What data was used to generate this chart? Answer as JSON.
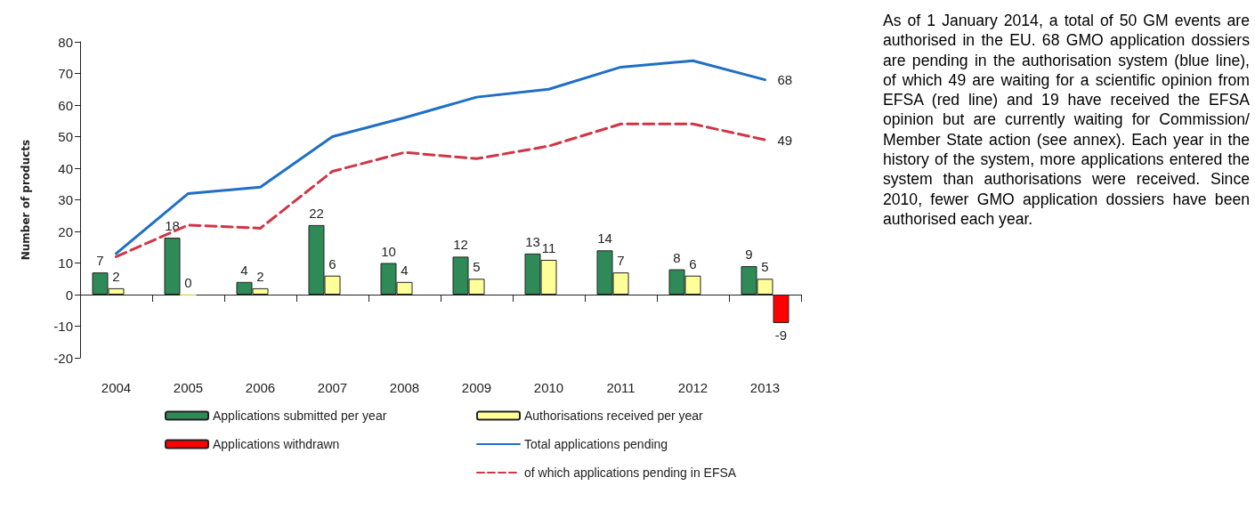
{
  "chart_data": {
    "type": "bar",
    "ylabel": "Number of products",
    "categories": [
      "2004",
      "2005",
      "2006",
      "2007",
      "2008",
      "2009",
      "2010",
      "2011",
      "2012",
      "2013"
    ],
    "series": [
      {
        "name": "Applications submitted per year",
        "color": "#2e8b57",
        "values": [
          7,
          18,
          4,
          22,
          10,
          12,
          13,
          14,
          8,
          9
        ],
        "data_labels": true
      },
      {
        "name": "Authorisations received per year",
        "color": "#ffff99",
        "values": [
          2,
          0,
          2,
          6,
          4,
          5,
          11,
          7,
          6,
          5
        ],
        "data_labels": true
      },
      {
        "name": "Applications withdrawn",
        "color": "#ff0000",
        "values": [
          null,
          null,
          null,
          null,
          null,
          null,
          null,
          null,
          null,
          -9
        ],
        "data_labels": true
      },
      {
        "name": "Total applications pending",
        "type": "line",
        "color": "#1f6fc5",
        "line_style": "solid",
        "values": [
          13,
          32,
          34,
          50,
          56,
          62.5,
          65,
          72,
          74,
          68
        ],
        "value_labels": [
          null,
          null,
          null,
          null,
          null,
          null,
          null,
          null,
          null,
          "68"
        ]
      },
      {
        "name": "of which applications pending in EFSA",
        "type": "line",
        "color": "#d03545",
        "line_style": "dashed",
        "values": [
          12,
          22,
          21,
          39,
          45,
          43,
          47,
          54,
          54,
          49
        ],
        "value_labels": [
          null,
          null,
          null,
          null,
          null,
          null,
          null,
          null,
          null,
          "49"
        ]
      }
    ],
    "ylim": [
      -20,
      80
    ],
    "yticks": [
      -20,
      -10,
      0,
      10,
      20,
      30,
      40,
      50,
      60,
      70,
      80
    ],
    "legend": "bottom",
    "marker": "none",
    "annotations": [
      "As of 1 January 2014, a total of 50 GM events are authorised in the EU. 68 GMO application dossiers are pending in the authorisation system (blue line), of which 49 are waiting for a scientific opinion from EFSA (red line) and 19 have received the EFSA opinion but are currently waiting for Commission/ Member State action (see annex). Each year in the history of the system, more applications entered the system than authorisations were received. Since 2010, fewer GMO application dossiers have been authorised each year."
    ]
  }
}
